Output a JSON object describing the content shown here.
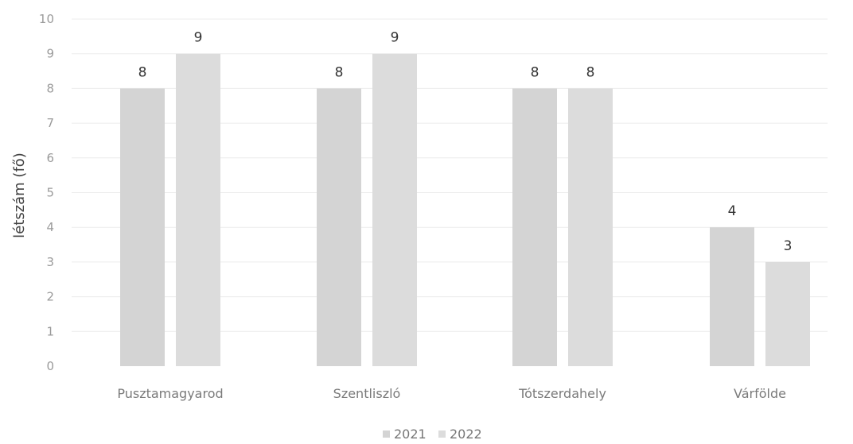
{
  "chart_data": {
    "type": "bar",
    "title": "",
    "xlabel": "",
    "ylabel": "létszám (fő)",
    "categories": [
      "Pusztamagyarod",
      "Szentliszló",
      "Tótszerdahely",
      "Várfölde"
    ],
    "series": [
      {
        "name": "2021",
        "values": [
          8,
          8,
          8,
          4
        ],
        "color": "#d4d4d4"
      },
      {
        "name": "2022",
        "values": [
          9,
          9,
          8,
          3
        ],
        "color": "#dcdcdc"
      }
    ],
    "ylim": [
      0,
      10
    ],
    "yticks": [
      0,
      1,
      2,
      3,
      4,
      5,
      6,
      7,
      8,
      9,
      10
    ],
    "grid": true,
    "legend": "bottom",
    "data_labels": true,
    "colors": {
      "gridline": "#ececec",
      "tick_text": "#9a9a9a",
      "label_text": "#333333"
    }
  }
}
